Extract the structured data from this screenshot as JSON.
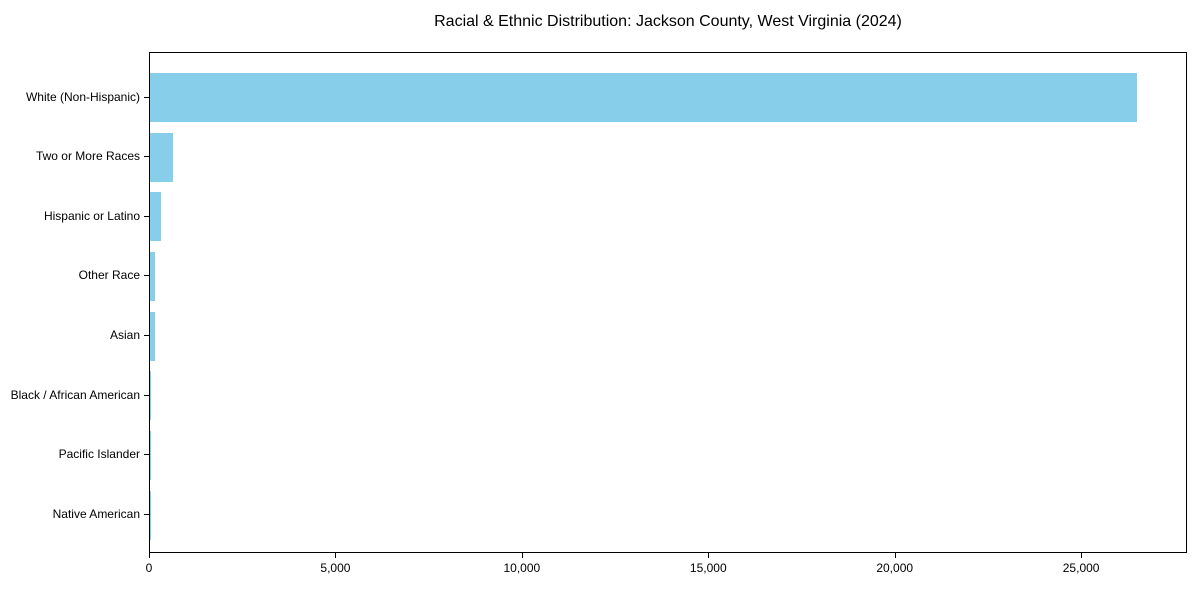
{
  "title": "Racial & Ethnic Distribution: Jackson County, West Virginia (2024)",
  "chart_data": {
    "type": "bar",
    "orientation": "horizontal",
    "title": "Racial & Ethnic Distribution: Jackson County, West Virginia (2024)",
    "categories": [
      "White (Non-Hispanic)",
      "Two or More Races",
      "Hispanic or Latino",
      "Other Race",
      "Asian",
      "Black / African American",
      "Pacific Islander",
      "Native American"
    ],
    "values": [
      26470,
      610,
      300,
      130,
      125,
      35,
      10,
      5
    ],
    "xlabel": "",
    "ylabel": "",
    "xlim": [
      0,
      27840
    ],
    "xticks": [
      0,
      5000,
      10000,
      15000,
      20000,
      25000
    ],
    "xtick_labels": [
      "0",
      "5,000",
      "10,000",
      "15,000",
      "20,000",
      "25,000"
    ],
    "bar_color": "#87CEEB",
    "grid": false,
    "legend": null
  }
}
